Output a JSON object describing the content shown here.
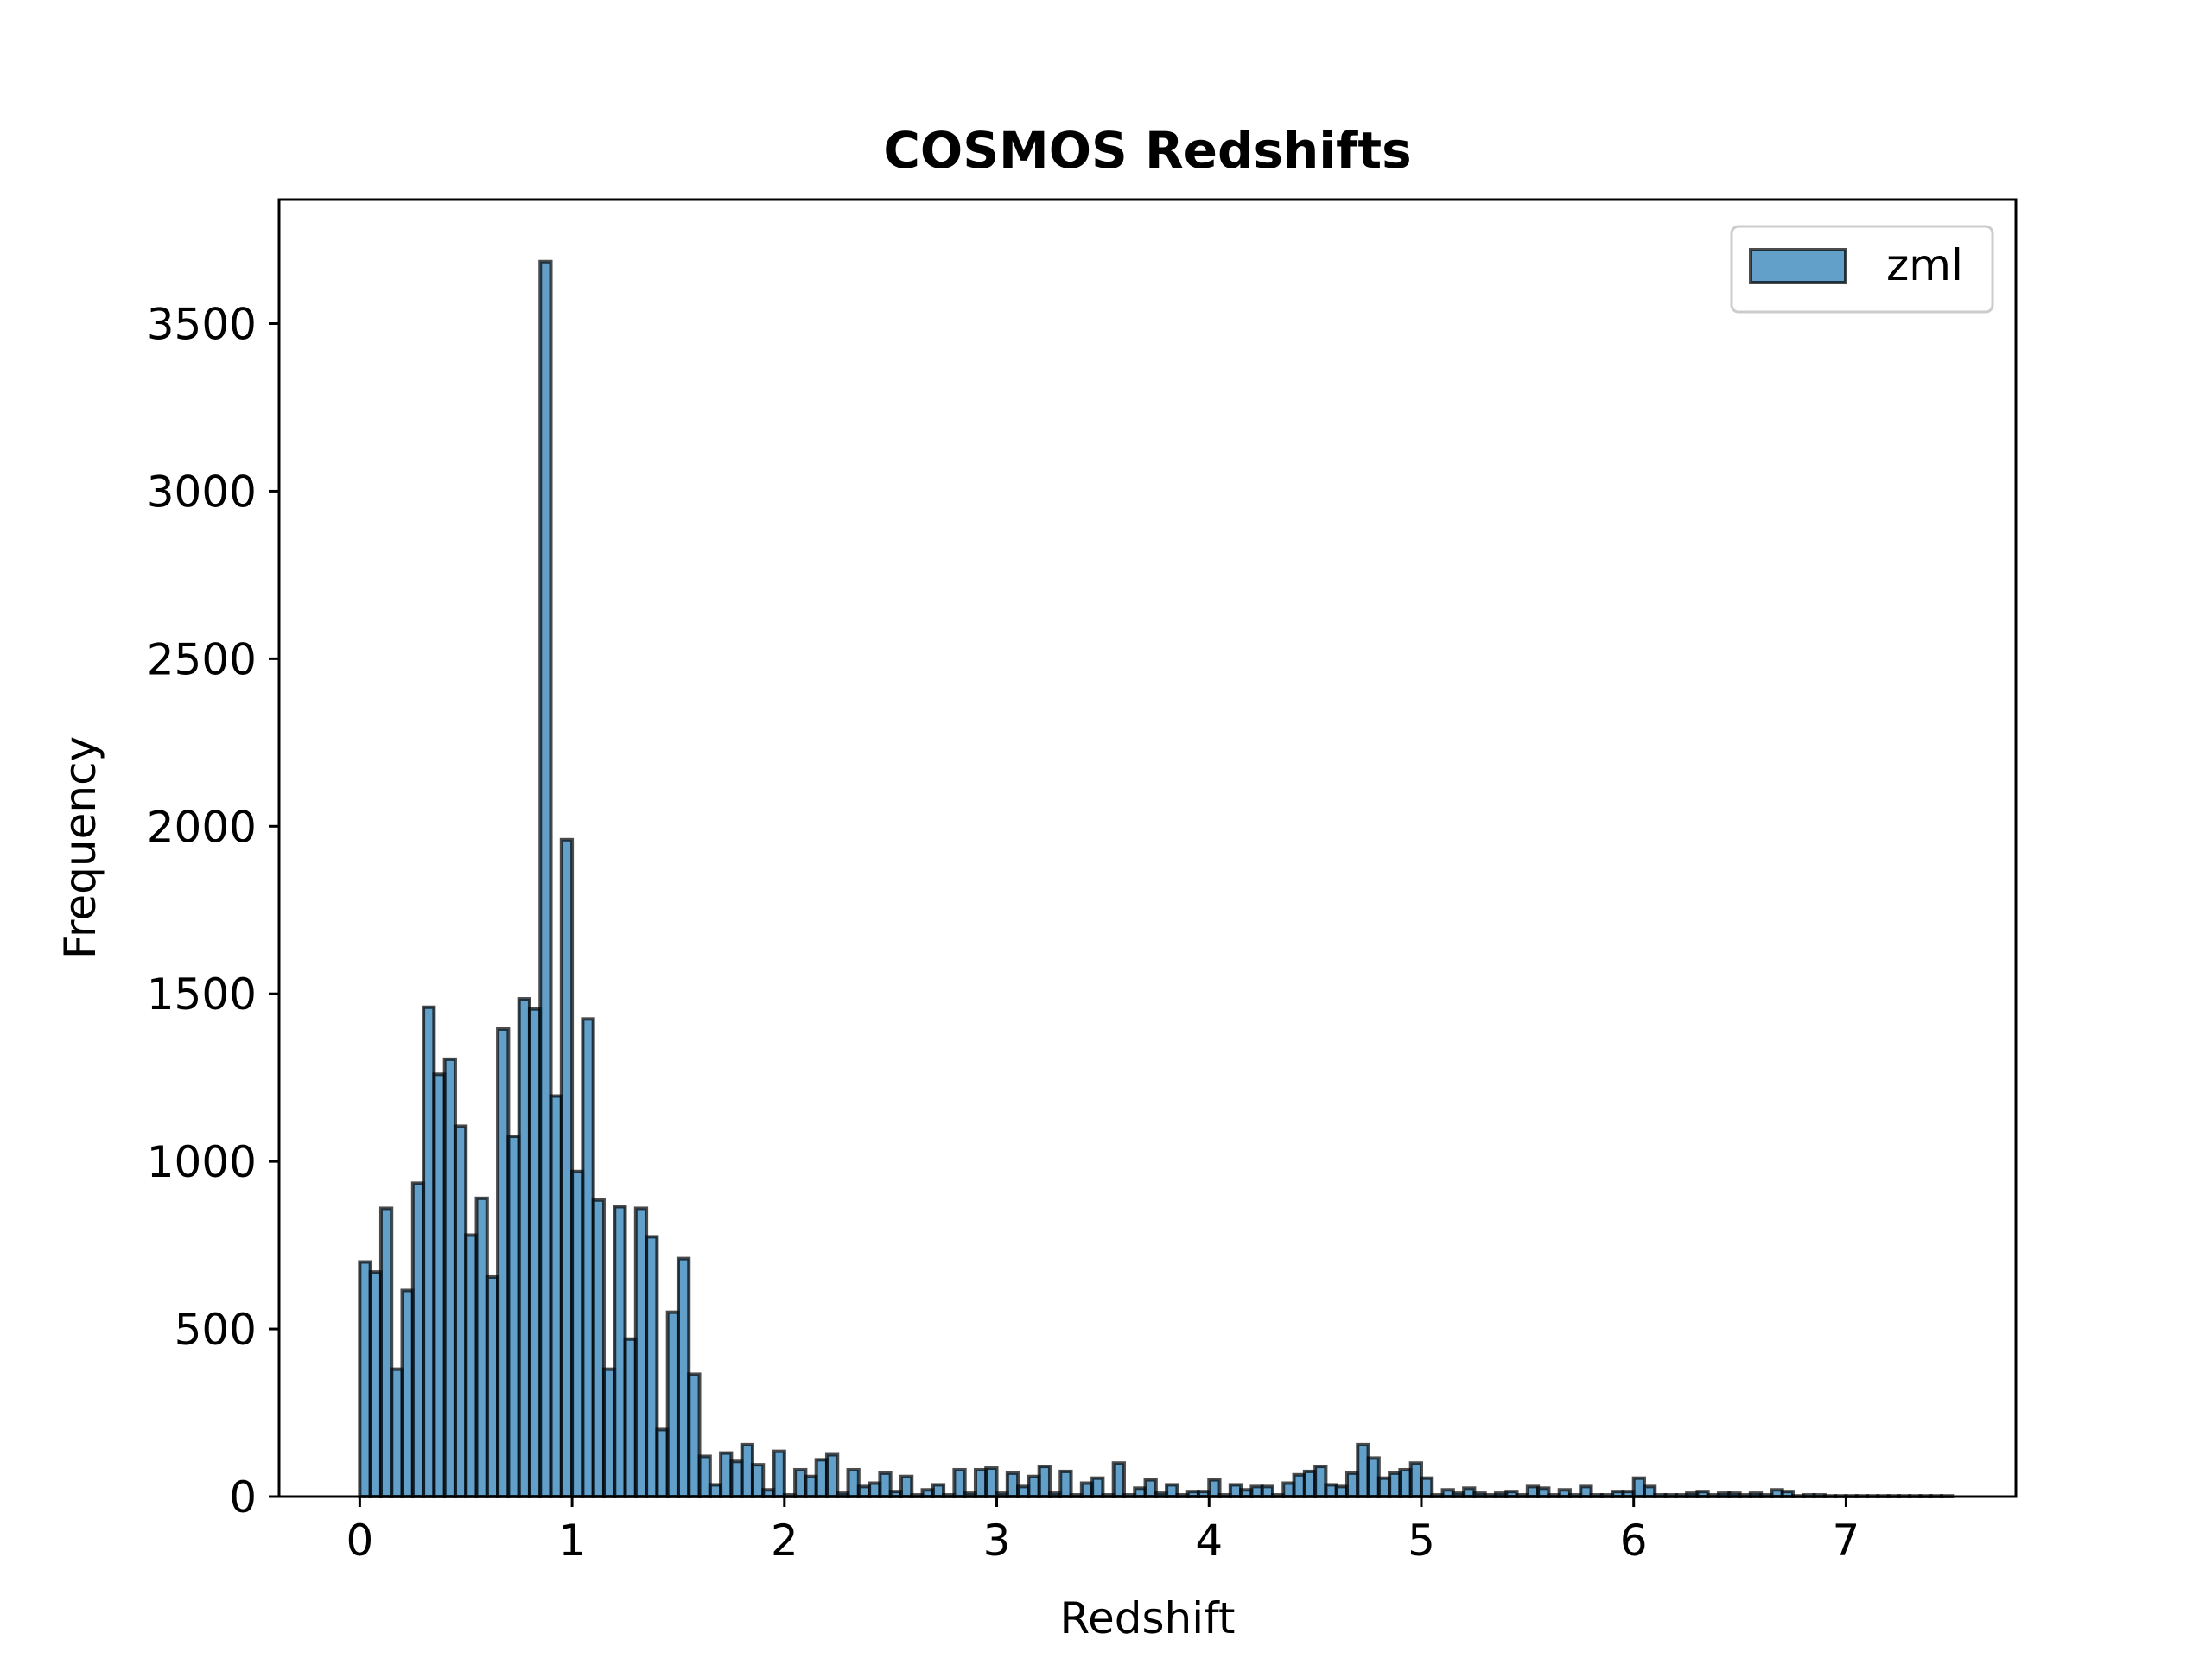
{
  "chart_data": {
    "type": "bar",
    "title": "COSMOS Redshifts",
    "xlabel": "Redshift",
    "ylabel": "Frequency",
    "xlim": [
      -0.38,
      7.8
    ],
    "ylim": [
      0,
      3870
    ],
    "xticks": [
      0,
      1,
      2,
      3,
      4,
      5,
      6,
      7
    ],
    "yticks": [
      0,
      500,
      1000,
      1500,
      2000,
      2500,
      3000,
      3500
    ],
    "legend_position": "top-right",
    "grid": false,
    "bin_start": 0.0,
    "bin_width": 0.05,
    "series": [
      {
        "name": "zml",
        "color": "#1f77b4",
        "edge_color": "#000000",
        "values": [
          700,
          670,
          860,
          380,
          615,
          935,
          1460,
          1260,
          1305,
          1105,
          780,
          890,
          655,
          1395,
          1075,
          1485,
          1455,
          3685,
          1195,
          1960,
          970,
          1425,
          885,
          380,
          865,
          470,
          860,
          775,
          200,
          550,
          710,
          365,
          120,
          35,
          130,
          105,
          155,
          95,
          20,
          135,
          5,
          80,
          60,
          110,
          125,
          10,
          80,
          30,
          40,
          70,
          15,
          60,
          5,
          20,
          35,
          5,
          80,
          10,
          80,
          85,
          10,
          70,
          30,
          60,
          90,
          10,
          75,
          5,
          40,
          55,
          5,
          100,
          5,
          25,
          50,
          10,
          35,
          5,
          15,
          15,
          50,
          5,
          35,
          20,
          30,
          30,
          5,
          40,
          65,
          75,
          90,
          35,
          30,
          70,
          155,
          115,
          55,
          70,
          80,
          100,
          55,
          5,
          20,
          10,
          25,
          10,
          5,
          10,
          15,
          5,
          30,
          25,
          5,
          20,
          5,
          30,
          5,
          5,
          15,
          15,
          55,
          30,
          5,
          5,
          5,
          10,
          15,
          5,
          10,
          10,
          5,
          10,
          5,
          20,
          15,
          2,
          5,
          5,
          2,
          2,
          2,
          2,
          2,
          2,
          2,
          2,
          2,
          2,
          2,
          2
        ]
      }
    ]
  }
}
